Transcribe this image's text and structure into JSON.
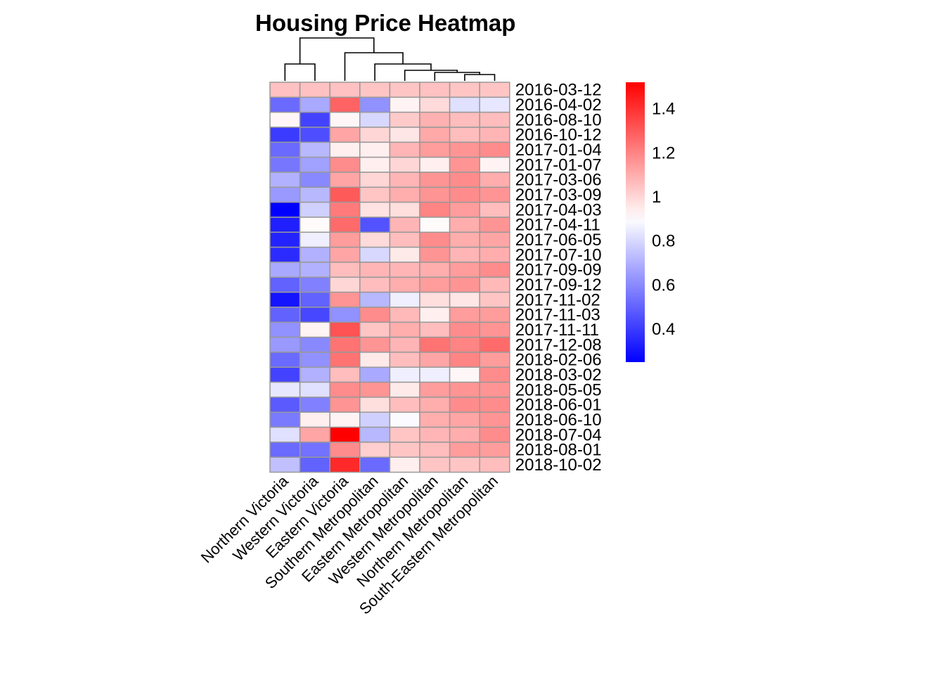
{
  "chart_data": {
    "type": "heatmap",
    "title": "Housing Price Heatmap",
    "columns": [
      "Northern Victoria",
      "Western Victoria",
      "Eastern Victoria",
      "Southern Metropolitan",
      "Eastern Metropolitan",
      "Western Metropolitan",
      "Northern Metropolitan",
      "South-Eastern Metropolitan"
    ],
    "rows": [
      "2016-03-12",
      "2016-04-02",
      "2016-08-10",
      "2016-10-12",
      "2017-01-04",
      "2017-01-07",
      "2017-03-06",
      "2017-03-09",
      "2017-04-03",
      "2017-04-11",
      "2017-06-05",
      "2017-07-10",
      "2017-09-09",
      "2017-09-12",
      "2017-11-02",
      "2017-11-03",
      "2017-11-11",
      "2017-12-08",
      "2018-02-06",
      "2018-03-02",
      "2018-05-05",
      "2018-06-01",
      "2018-06-10",
      "2018-07-04",
      "2018-08-01",
      "2018-10-02"
    ],
    "values": [
      [
        1.05,
        1.05,
        1.05,
        1.04,
        1.04,
        1.05,
        1.04,
        1.04
      ],
      [
        0.52,
        0.68,
        1.28,
        0.62,
        0.93,
        0.99,
        0.82,
        0.84
      ],
      [
        0.92,
        0.42,
        0.92,
        0.8,
        1.03,
        1.09,
        1.06,
        1.06
      ],
      [
        0.4,
        0.45,
        1.12,
        1.0,
        0.96,
        1.11,
        1.06,
        1.08
      ],
      [
        0.52,
        0.72,
        0.94,
        0.94,
        1.08,
        1.14,
        1.16,
        1.18
      ],
      [
        0.55,
        0.66,
        1.18,
        0.94,
        1.0,
        0.94,
        1.16,
        0.93
      ],
      [
        0.7,
        0.6,
        1.12,
        1.0,
        1.08,
        1.16,
        1.18,
        1.1
      ],
      [
        0.64,
        0.72,
        1.3,
        1.04,
        1.1,
        1.16,
        1.18,
        1.16
      ],
      [
        0.25,
        0.78,
        1.22,
        0.97,
        0.98,
        1.2,
        1.14,
        1.06
      ],
      [
        0.33,
        0.91,
        1.26,
        0.46,
        1.08,
        0.91,
        1.1,
        1.16
      ],
      [
        0.34,
        0.86,
        1.14,
        0.99,
        1.06,
        1.18,
        1.1,
        1.12
      ],
      [
        0.36,
        0.7,
        1.12,
        0.8,
        0.95,
        1.16,
        1.08,
        1.1
      ],
      [
        0.68,
        0.7,
        1.06,
        1.08,
        1.08,
        1.1,
        1.14,
        1.18
      ],
      [
        0.5,
        0.58,
        1.0,
        1.06,
        1.1,
        1.14,
        1.16,
        1.07
      ],
      [
        0.3,
        0.5,
        1.16,
        0.72,
        0.86,
        0.98,
        0.96,
        1.04
      ],
      [
        0.5,
        0.43,
        0.62,
        1.18,
        1.07,
        0.94,
        1.14,
        1.14
      ],
      [
        0.62,
        0.93,
        1.32,
        1.04,
        1.1,
        1.06,
        1.18,
        1.16
      ],
      [
        0.64,
        0.6,
        1.24,
        1.16,
        1.08,
        1.24,
        1.2,
        1.26
      ],
      [
        0.52,
        0.62,
        1.24,
        0.95,
        1.06,
        1.12,
        1.2,
        1.14
      ],
      [
        0.42,
        0.7,
        1.06,
        0.68,
        0.86,
        0.86,
        0.92,
        1.18
      ],
      [
        0.84,
        0.82,
        1.18,
        1.16,
        0.95,
        1.14,
        1.16,
        1.16
      ],
      [
        0.48,
        0.58,
        1.16,
        0.98,
        1.06,
        1.1,
        1.18,
        1.18
      ],
      [
        0.56,
        0.94,
        0.93,
        0.78,
        0.89,
        1.1,
        1.12,
        1.16
      ],
      [
        0.82,
        1.12,
        1.52,
        0.72,
        1.04,
        1.08,
        1.1,
        1.18
      ],
      [
        0.52,
        0.54,
        1.18,
        1.02,
        1.04,
        1.06,
        1.14,
        1.14
      ],
      [
        0.74,
        0.5,
        1.42,
        0.52,
        0.94,
        1.04,
        1.04,
        1.06
      ]
    ],
    "color_scale": {
      "low_color": "#0000FF",
      "mid_color": "#FFFFFF",
      "high_color": "#FF0000",
      "min": 0.25,
      "mid": 0.9,
      "max": 1.52
    },
    "legend_ticks": [
      0.4,
      0.6,
      0.8,
      1,
      1.2,
      1.4
    ],
    "legend_labels": [
      "0.4",
      "0.6",
      "0.8",
      "1",
      "1.2",
      "1.4"
    ],
    "legend_placement": "right",
    "column_dendrogram": true,
    "cell_border_color": "#999999"
  }
}
